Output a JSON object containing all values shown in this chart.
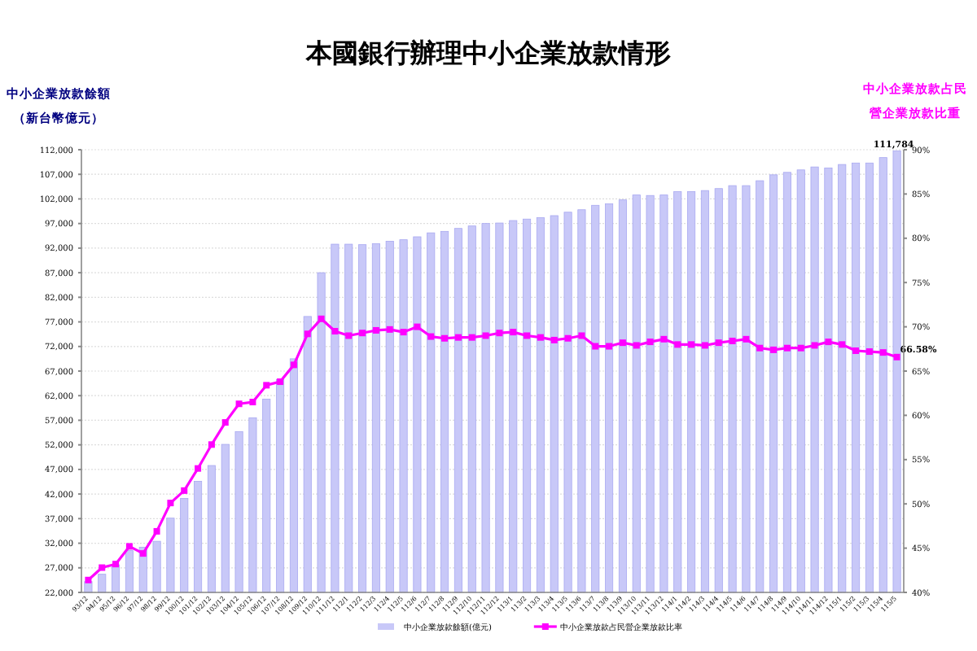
{
  "chart_data": {
    "type": "bar",
    "title": "本國銀行辦理中小企業放款情形",
    "ylabel": "中小企業放款餘額（新台幣億元）",
    "y2label": "中小企業放款占民營企業放款比重",
    "categories": [
      "93/12",
      "94/12",
      "95/12",
      "96/12",
      "97/12",
      "98/12",
      "99/12",
      "100/12",
      "101/12",
      "102/12",
      "103/12",
      "104/12",
      "105/12",
      "106/12",
      "107/12",
      "108/12",
      "109/12",
      "110/12",
      "111/12",
      "112/1",
      "112/2",
      "112/3",
      "112/4",
      "112/5",
      "112/6",
      "112/7",
      "112/8",
      "112/9",
      "112/10",
      "112/11",
      "112/12",
      "113/1",
      "113/2",
      "113/3",
      "113/4",
      "113/5",
      "113/6",
      "113/7",
      "113/8",
      "113/9",
      "113/10",
      "113/11",
      "113/12",
      "114/1",
      "114/2",
      "114/3",
      "114/4",
      "114/5",
      "114/6",
      "114/7",
      "114/8",
      "114/9",
      "114/10",
      "114/11",
      "114/12",
      "115/1",
      "115/2",
      "115/3",
      "115/4",
      "115/5"
    ],
    "series": [
      {
        "name": "中小企業放款餘額(億元)",
        "color": "#c8c8f8",
        "values": [
          24200,
          25700,
          27600,
          30500,
          31200,
          32400,
          37100,
          41100,
          44600,
          47800,
          52100,
          54700,
          57500,
          61300,
          65300,
          69500,
          78100,
          87000,
          92800,
          92800,
          92700,
          92900,
          93400,
          93700,
          94300,
          95100,
          95400,
          96000,
          96500,
          97000,
          97100,
          97600,
          97900,
          98200,
          98600,
          99300,
          99800,
          100700,
          101000,
          101800,
          102800,
          102700,
          102800,
          103500,
          103500,
          103700,
          104100,
          104700,
          104700,
          105700,
          106900,
          107400,
          107900,
          108500,
          108300,
          109000,
          109300,
          109300,
          110400,
          111784
        ],
        "value_labels": [
          null,
          null,
          null,
          null,
          null,
          null,
          null,
          null,
          null,
          null,
          null,
          null,
          null,
          null,
          null,
          null,
          null,
          null,
          null,
          null,
          null,
          null,
          null,
          null,
          null,
          null,
          null,
          null,
          null,
          null,
          null,
          null,
          null,
          null,
          null,
          null,
          null,
          null,
          null,
          null,
          null,
          null,
          null,
          null,
          null,
          null,
          null,
          null,
          null,
          null,
          null,
          null,
          null,
          null,
          null,
          null,
          null,
          null,
          null,
          "111,784"
        ]
      },
      {
        "name": "中小企業放款占民營企業放款比率",
        "type": "line",
        "axis": "y2",
        "color": "#ff00ff",
        "values": [
          41.4,
          42.8,
          43.2,
          45.2,
          44.4,
          46.9,
          50.1,
          51.5,
          54.0,
          56.7,
          59.2,
          61.3,
          61.5,
          63.4,
          63.8,
          65.7,
          69.2,
          70.9,
          69.5,
          69.0,
          69.3,
          69.6,
          69.7,
          69.4,
          70.0,
          68.9,
          68.7,
          68.8,
          68.8,
          69.0,
          69.3,
          69.4,
          69.0,
          68.8,
          68.5,
          68.7,
          69.0,
          67.8,
          67.8,
          68.2,
          67.9,
          68.3,
          68.6,
          68.0,
          68.0,
          67.9,
          68.2,
          68.4,
          68.6,
          67.6,
          67.4,
          67.6,
          67.6,
          67.9,
          68.3,
          68.0,
          67.3,
          67.2,
          67.1,
          66.58
        ],
        "value_labels": [
          null,
          null,
          null,
          null,
          null,
          null,
          null,
          null,
          null,
          null,
          null,
          null,
          null,
          null,
          null,
          null,
          null,
          null,
          null,
          null,
          null,
          null,
          null,
          null,
          null,
          null,
          null,
          null,
          null,
          null,
          null,
          null,
          null,
          null,
          null,
          null,
          null,
          null,
          null,
          null,
          null,
          null,
          null,
          null,
          null,
          null,
          null,
          null,
          null,
          null,
          null,
          null,
          null,
          null,
          null,
          null,
          null,
          null,
          null,
          "66.58%"
        ]
      }
    ],
    "ylim": [
      22000,
      112000
    ],
    "yticks": [
      {
        "value": 22000,
        "label": "22,000"
      },
      {
        "value": 27000,
        "label": "27,000"
      },
      {
        "value": 32000,
        "label": "32,000"
      },
      {
        "value": 37000,
        "label": "37,000"
      },
      {
        "value": 42000,
        "label": "42,000"
      },
      {
        "value": 47000,
        "label": "47,000"
      },
      {
        "value": 52000,
        "label": "52,000"
      },
      {
        "value": 57000,
        "label": "57,000"
      },
      {
        "value": 62000,
        "label": "62,000"
      },
      {
        "value": 67000,
        "label": "67,000"
      },
      {
        "value": 72000,
        "label": "72,000"
      },
      {
        "value": 77000,
        "label": "77,000"
      },
      {
        "value": 82000,
        "label": "82,000"
      },
      {
        "value": 87000,
        "label": "87,000"
      },
      {
        "value": 92000,
        "label": "92,000"
      },
      {
        "value": 97000,
        "label": "97,000"
      },
      {
        "value": 102000,
        "label": "102,000"
      },
      {
        "value": 107000,
        "label": "107,000"
      },
      {
        "value": 112000,
        "label": "112,000"
      }
    ],
    "y2lim": [
      40,
      90
    ],
    "y2ticks": [
      {
        "value": 40,
        "label": "40%"
      },
      {
        "value": 45,
        "label": "45%"
      },
      {
        "value": 50,
        "label": "50%"
      },
      {
        "value": 55,
        "label": "55%"
      },
      {
        "value": 60,
        "label": "60%"
      },
      {
        "value": 65,
        "label": "65%"
      },
      {
        "value": 70,
        "label": "70%"
      },
      {
        "value": 75,
        "label": "75%"
      },
      {
        "value": 80,
        "label": "80%"
      },
      {
        "value": 85,
        "label": "85%"
      },
      {
        "value": 90,
        "label": "90%"
      }
    ],
    "grid": "y",
    "legend": "bottom",
    "marker": "square"
  }
}
